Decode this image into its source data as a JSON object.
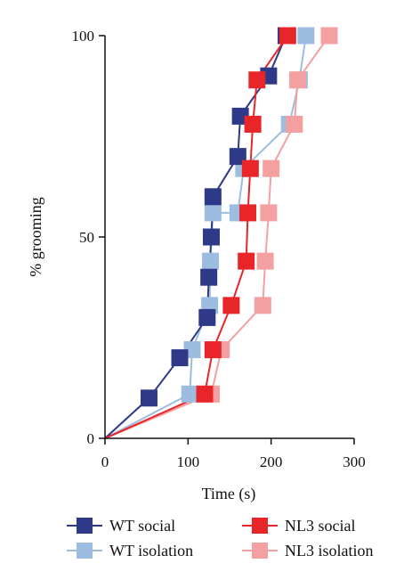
{
  "chart_data": {
    "type": "line",
    "xlabel": "Time (s)",
    "ylabel": "% grooming",
    "xlim": [
      0,
      300
    ],
    "ylim": [
      0,
      100
    ],
    "x_ticks": [
      0,
      100,
      200,
      300
    ],
    "y_ticks": [
      0,
      50,
      100
    ],
    "grid": false,
    "legend_position": "bottom",
    "series": [
      {
        "name": "WT social",
        "color": "#2e3a87",
        "x": [
          0,
          53,
          90,
          123,
          125,
          128,
          130,
          160,
          163,
          197,
          218
        ],
        "y": [
          0,
          10,
          20,
          30,
          40,
          50,
          60,
          70,
          80,
          90,
          100
        ]
      },
      {
        "name": "WT isolation",
        "color": "#9dbde0",
        "x": [
          0,
          102,
          105,
          126,
          127,
          130,
          160,
          167,
          222,
          234,
          242
        ],
        "y": [
          0,
          11,
          22,
          33,
          44,
          56,
          56,
          67,
          78,
          89,
          100
        ]
      },
      {
        "name": "NL3 social",
        "color": "#e8262a",
        "x": [
          0,
          120,
          130,
          152,
          170,
          172,
          175,
          178,
          183,
          220
        ],
        "y": [
          0,
          11,
          22,
          33,
          44,
          56,
          67,
          78,
          89,
          100
        ]
      },
      {
        "name": "NL3 isolation",
        "color": "#f4a0a0",
        "x": [
          0,
          128,
          140,
          190,
          193,
          197,
          200,
          228,
          232,
          270
        ],
        "y": [
          0,
          11,
          22,
          33,
          44,
          56,
          67,
          78,
          89,
          100
        ]
      }
    ]
  }
}
